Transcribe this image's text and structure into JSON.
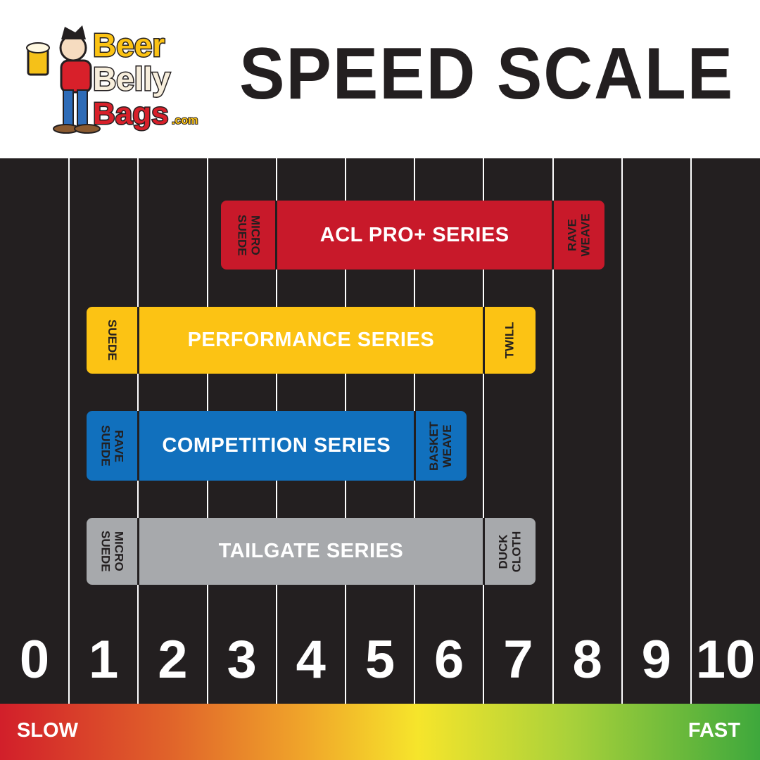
{
  "header": {
    "logo_text": "Beer Belly Bags.com",
    "title": "SPEED SCALE"
  },
  "chart_data": {
    "type": "bar",
    "title": "SPEED SCALE",
    "x_ticks": [
      "0",
      "1",
      "2",
      "3",
      "4",
      "5",
      "6",
      "7",
      "8",
      "9",
      "10"
    ],
    "xlim": [
      0,
      11
    ],
    "grid": true,
    "bars": [
      {
        "name": "ACL PRO+ SERIES",
        "color": "#c8192a",
        "start": 3.2,
        "main_start": 4,
        "main_end": 8,
        "end": 8.75,
        "slow_material": [
          "MICRO",
          "SUEDE"
        ],
        "fast_material": [
          "RAVE",
          "WEAVE"
        ]
      },
      {
        "name": "PERFORMANCE SERIES",
        "color": "#fcc314",
        "start": 1.25,
        "main_start": 2,
        "main_end": 7,
        "end": 7.75,
        "slow_material": [
          "SUEDE"
        ],
        "fast_material": [
          "TWILL"
        ]
      },
      {
        "name": "COMPETITION SERIES",
        "color": "#1170bd",
        "start": 1.25,
        "main_start": 2,
        "main_end": 6,
        "end": 6.75,
        "slow_material": [
          "RAVE",
          "SUEDE"
        ],
        "fast_material": [
          "BASKET",
          "WEAVE"
        ]
      },
      {
        "name": "TAILGATE SERIES",
        "color": "#a7a9ac",
        "start": 1.25,
        "main_start": 2,
        "main_end": 7,
        "end": 7.75,
        "slow_material": [
          "MICRO",
          "SUEDE"
        ],
        "fast_material": [
          "DUCK",
          "CLOTH"
        ]
      }
    ]
  },
  "scale": {
    "slow_label": "SLOW",
    "fast_label": "FAST"
  }
}
